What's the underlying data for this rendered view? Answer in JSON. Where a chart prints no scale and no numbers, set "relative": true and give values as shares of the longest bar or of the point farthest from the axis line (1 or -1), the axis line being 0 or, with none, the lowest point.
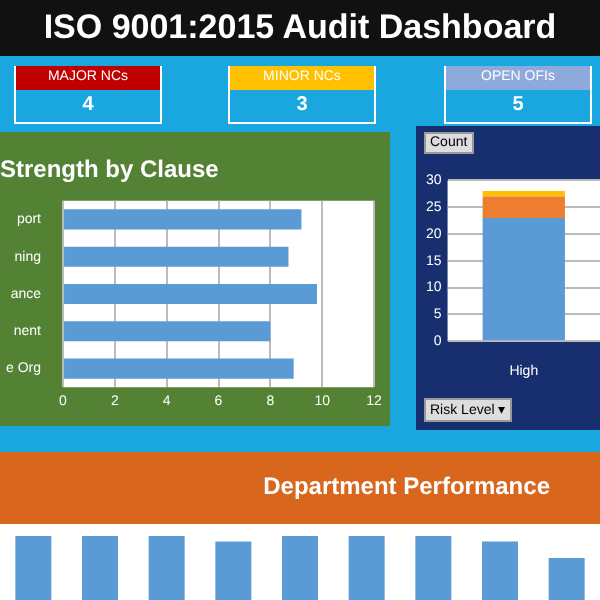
{
  "chart_data": [
    {
      "type": "other",
      "title": "ISO 9001:2015 Audit Dashboard",
      "categories": [
        "MAJOR NCs",
        "MINOR NCs",
        "OPEN OFIs"
      ],
      "values": [
        4,
        3,
        5
      ],
      "data_labels": true,
      "colors": [
        "#c00000",
        "#ffc000",
        "#8ea9db"
      ]
    },
    {
      "type": "bar",
      "orientation": "horizontal",
      "title": "Strength by Clause",
      "categories": [
        "port",
        "ning",
        "ance",
        "nent",
        "e Org"
      ],
      "values": [
        9.2,
        8.7,
        9.8,
        8.0,
        8.9
      ],
      "color": "#5b9bd5",
      "xlim": [
        0,
        12
      ],
      "xticks": [
        0,
        2,
        4,
        6,
        8,
        10,
        12
      ],
      "grid": "x"
    },
    {
      "type": "bar",
      "stacked": true,
      "categories": [
        "High"
      ],
      "series": [
        {
          "color": "#5b9bd5",
          "values": [
            23
          ]
        },
        {
          "color": "#ed7d31",
          "values": [
            4
          ]
        },
        {
          "color": "#ffc000",
          "values": [
            1
          ]
        }
      ],
      "ylim": [
        0,
        30
      ],
      "yticks": [
        0,
        5,
        10,
        15,
        20,
        25,
        30
      ],
      "grid": "y",
      "annotations": [
        "Count",
        "Risk Level ▾"
      ]
    },
    {
      "type": "bar",
      "relative": true,
      "title": "Department Performance",
      "categories": [
        null,
        null,
        null,
        null,
        null,
        null,
        null,
        null,
        null
      ],
      "values": [
        1,
        1,
        1,
        0.97,
        1,
        1,
        1,
        0.97,
        0.88
      ],
      "color": "#5b9bd5"
    }
  ]
}
